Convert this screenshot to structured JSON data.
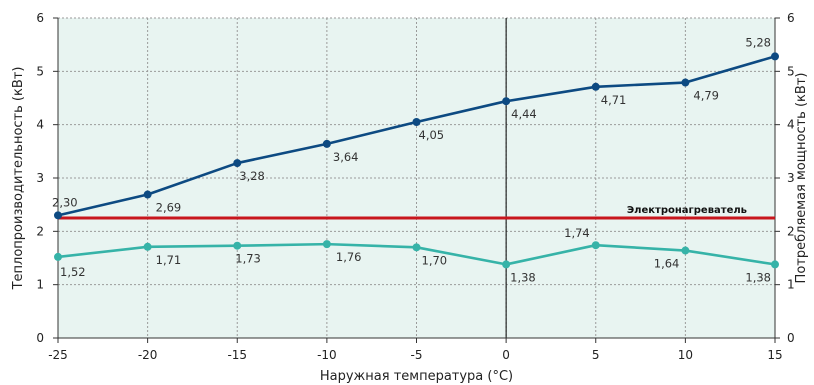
{
  "chart_data": {
    "type": "line",
    "xlabel": "Наружная температура (°C)",
    "ylabel_left": "Теплопроизводительность (кВт)",
    "ylabel_right": "Потребляемая мощность (кВт)",
    "xlim": [
      -25,
      15
    ],
    "ylim": [
      0,
      6
    ],
    "x_ticks": [
      "-25",
      "-20",
      "-15",
      "-10",
      "-5",
      "0",
      "5",
      "10",
      "15"
    ],
    "y_ticks": [
      "0",
      "1",
      "2",
      "3",
      "4",
      "5",
      "6"
    ],
    "grid": true,
    "x": [
      -25,
      -20,
      -15,
      -10,
      -5,
      0,
      5,
      10,
      15
    ],
    "series": [
      {
        "key": "heating_capacity",
        "color": "#0d4a82",
        "values": [
          2.3,
          2.69,
          3.28,
          3.64,
          4.05,
          4.44,
          4.71,
          4.79,
          5.28
        ],
        "labels": [
          "2,30",
          "2,69",
          "3,28",
          "3,64",
          "4,05",
          "4,44",
          "4,71",
          "4,79",
          "5,28"
        ]
      },
      {
        "key": "power_consumption",
        "color": "#36b3a8",
        "values": [
          1.52,
          1.71,
          1.73,
          1.76,
          1.7,
          1.38,
          1.74,
          1.64,
          1.38
        ],
        "labels": [
          "1,52",
          "1,71",
          "1,73",
          "1,76",
          "1,70",
          "1,38",
          "1,74",
          "1,64",
          "1,38"
        ]
      }
    ],
    "reference_line": {
      "name": "Электронагреватель",
      "value": 2.25,
      "color": "#c8161d"
    },
    "vertical_marker_x": 0,
    "colors": {
      "plot_background": "#e8f4f1",
      "grid": "#9a9a9a",
      "axis": "#333333"
    }
  }
}
